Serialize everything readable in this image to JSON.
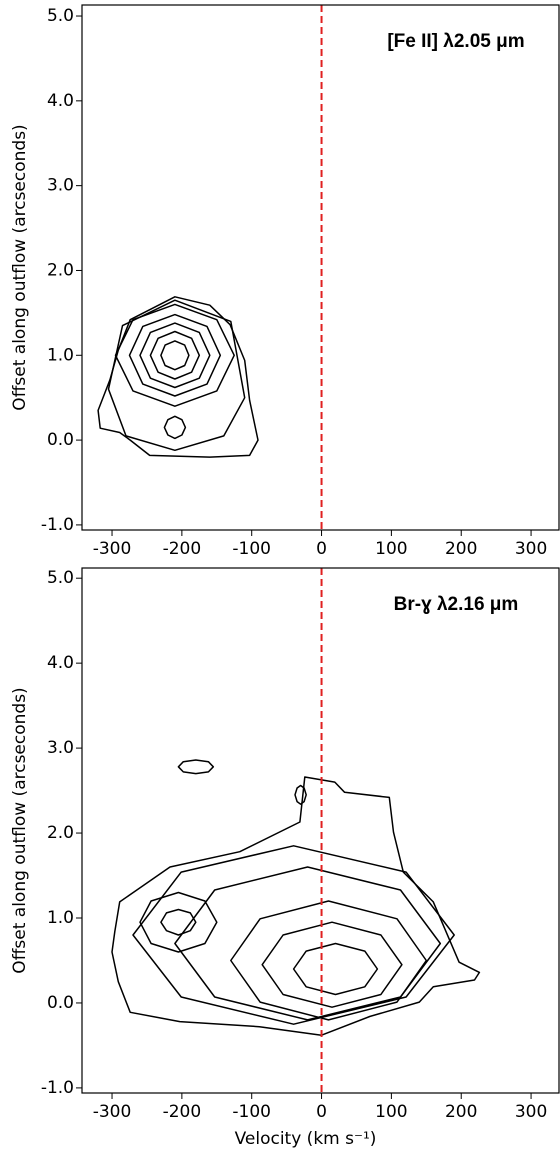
{
  "chart_data": [
    {
      "type": "contour",
      "annotation": "[Fe II] λ2.05 μm",
      "ylabel": "Offset along outflow (arcseconds)",
      "xlim": [
        -343,
        340
      ],
      "ylim": [
        -1.06,
        5.13
      ],
      "xticks": [
        -300,
        -200,
        -100,
        0,
        100,
        200,
        300
      ],
      "yticks": [
        {
          "value": -1,
          "label": "-1.0"
        },
        {
          "value": 0,
          "label": "0.0"
        },
        {
          "value": 1,
          "label": "1.0"
        },
        {
          "value": 2,
          "label": "2.0"
        },
        {
          "value": 3,
          "label": "3.0"
        },
        {
          "value": 4,
          "label": "4.0"
        },
        {
          "value": 5,
          "label": "5.0"
        }
      ],
      "vline": {
        "value": 0,
        "color": "#e02020",
        "style": "dashed"
      },
      "color": "#000000",
      "contours": [
        {
          "x": [
            -317,
            -320,
            -303,
            -291,
            -274,
            -210,
            -160,
            -131,
            -110,
            -103,
            -91,
            -103,
            -160,
            -246,
            -274,
            -289
          ],
          "y": [
            0.14,
            0.35,
            0.71,
            1.06,
            1.42,
            1.69,
            1.59,
            1.36,
            0.94,
            0.47,
            0.0,
            -0.18,
            -0.2,
            -0.18,
            0.0,
            0.09
          ]
        },
        {
          "x": [
            -110,
            -130,
            -210,
            -285,
            -305,
            -280,
            -210,
            -140
          ],
          "y": [
            0.5,
            1.4,
            1.65,
            1.35,
            0.6,
            0.05,
            -0.12,
            0.05
          ]
        },
        {
          "x": [
            -125,
            -150,
            -210,
            -270,
            -295,
            -270,
            -210,
            -150
          ],
          "y": [
            1.0,
            1.42,
            1.6,
            1.42,
            1.0,
            0.58,
            0.4,
            0.58
          ]
        },
        {
          "x": [
            -145,
            -164,
            -210,
            -256,
            -275,
            -256,
            -210,
            -164
          ],
          "y": [
            1.0,
            1.34,
            1.48,
            1.34,
            1.0,
            0.66,
            0.52,
            0.66
          ]
        },
        {
          "x": [
            -160,
            -175,
            -210,
            -245,
            -260,
            -245,
            -210,
            -175
          ],
          "y": [
            1.0,
            1.27,
            1.38,
            1.27,
            1.0,
            0.73,
            0.62,
            0.73
          ]
        },
        {
          "x": [
            -175,
            -186,
            -210,
            -234,
            -245,
            -234,
            -210,
            -186
          ],
          "y": [
            1.0,
            1.2,
            1.28,
            1.2,
            1.0,
            0.8,
            0.72,
            0.8
          ]
        },
        {
          "x": [
            -190,
            -196,
            -210,
            -224,
            -230,
            -224,
            -210,
            -196
          ],
          "y": [
            1.0,
            1.12,
            1.17,
            1.12,
            1.0,
            0.88,
            0.83,
            0.88
          ]
        },
        {
          "x": [
            -195,
            -200,
            -210,
            -220,
            -225,
            -220,
            -210,
            -200
          ],
          "y": [
            0.15,
            0.24,
            0.28,
            0.24,
            0.15,
            0.06,
            0.02,
            0.06
          ]
        }
      ]
    },
    {
      "type": "contour",
      "annotation": "Br-ɣ λ2.16 μm",
      "ylabel": "Offset along outflow (arcseconds)",
      "xlabel": "Velocity (km s⁻¹)",
      "xlim": [
        -343,
        340
      ],
      "ylim": [
        -1.06,
        5.12
      ],
      "xticks": [
        -300,
        -200,
        -100,
        0,
        100,
        200,
        300
      ],
      "yticks": [
        {
          "value": -1,
          "label": "-1.0"
        },
        {
          "value": 0,
          "label": "0.0"
        },
        {
          "value": 1,
          "label": "1.0"
        },
        {
          "value": 2,
          "label": "2.0"
        },
        {
          "value": 3,
          "label": "3.0"
        },
        {
          "value": 4,
          "label": "4.0"
        },
        {
          "value": 5,
          "label": "5.0"
        }
      ],
      "vline": {
        "value": 0,
        "color": "#e02020",
        "style": "dashed"
      },
      "color": "#000000",
      "contours": [
        {
          "x": [
            -296,
            -289,
            -217,
            -117,
            -31,
            -24,
            19,
            33,
            97,
            103,
            117,
            160,
            197,
            226,
            219,
            160,
            140,
            69,
            0,
            -89,
            -203,
            -274,
            -291,
            -300
          ],
          "y": [
            0.84,
            1.19,
            1.6,
            1.78,
            2.13,
            2.66,
            2.6,
            2.48,
            2.42,
            2.01,
            1.54,
            1.19,
            0.48,
            0.36,
            0.27,
            0.19,
            0.01,
            -0.16,
            -0.38,
            -0.28,
            -0.22,
            -0.11,
            0.25,
            0.6
          ]
        },
        {
          "x": [
            190,
            121,
            -40,
            -201,
            -270,
            -201,
            -40,
            121
          ],
          "y": [
            0.8,
            1.54,
            1.85,
            1.54,
            0.8,
            0.07,
            -0.25,
            0.07
          ]
        },
        {
          "x": [
            170,
            113,
            -20,
            -153,
            -210,
            -153,
            -20,
            113
          ],
          "y": [
            0.7,
            1.33,
            1.6,
            1.33,
            0.7,
            0.07,
            -0.2,
            0.07
          ]
        },
        {
          "x": [
            150,
            108,
            10,
            -88,
            -130,
            -88,
            10,
            108
          ],
          "y": [
            0.5,
            0.99,
            1.2,
            0.99,
            0.5,
            0.01,
            -0.2,
            0.01
          ]
        },
        {
          "x": [
            115,
            85,
            15,
            -55,
            -85,
            -55,
            15,
            85
          ],
          "y": [
            0.45,
            0.8,
            0.95,
            0.8,
            0.45,
            0.1,
            -0.05,
            0.1
          ]
        },
        {
          "x": [
            80,
            62,
            20,
            -22,
            -40,
            -22,
            20,
            62
          ],
          "y": [
            0.4,
            0.61,
            0.7,
            0.61,
            0.4,
            0.19,
            0.1,
            0.19
          ]
        },
        {
          "x": [
            -150,
            -167,
            -205,
            -244,
            -260,
            -244,
            -205,
            -167
          ],
          "y": [
            0.95,
            1.2,
            1.3,
            1.2,
            0.95,
            0.7,
            0.6,
            0.7
          ]
        },
        {
          "x": [
            -180,
            -188,
            -205,
            -222,
            -230,
            -222,
            -205,
            -188
          ],
          "y": [
            0.95,
            1.06,
            1.1,
            1.06,
            0.95,
            0.85,
            0.8,
            0.85
          ]
        },
        {
          "x": [
            -155,
            -162,
            -180,
            -198,
            -205,
            -198,
            -180,
            -162
          ],
          "y": [
            2.78,
            2.84,
            2.86,
            2.84,
            2.78,
            2.72,
            2.7,
            2.72
          ]
        },
        {
          "x": [
            -22,
            -25,
            -30,
            -35,
            -38,
            -35,
            -30,
            -25
          ],
          "y": [
            2.45,
            2.53,
            2.56,
            2.53,
            2.45,
            2.37,
            2.34,
            2.37
          ]
        }
      ]
    }
  ]
}
